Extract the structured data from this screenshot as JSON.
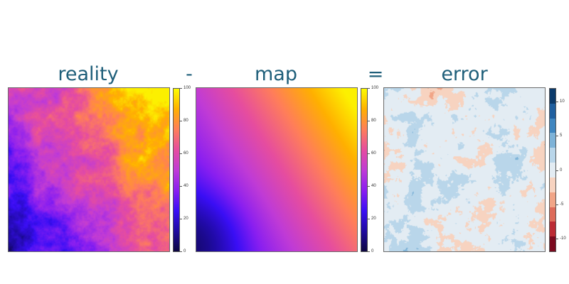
{
  "equation": {
    "reality_title": "reality",
    "minus_sign": "-",
    "map_title": "map",
    "equals_sign": "=",
    "error_title": "error",
    "title_color": "#1f5f7a"
  },
  "panels": {
    "reality": {
      "colormap": "plasma",
      "description_hint": "noisy random field, low (blue/purple) bottom-left, high (yellow) top and right"
    },
    "map": {
      "colormap": "plasma",
      "description_hint": "smooth field, low (blue) left, high (yellow) top-right"
    },
    "error": {
      "colormap": "RdBu",
      "description_hint": "patchy red/blue noise around zero"
    }
  },
  "colorbars": {
    "reality": {
      "ticks": [
        "100",
        "80",
        "60",
        "40",
        "20",
        "0"
      ],
      "range": [
        0,
        100
      ],
      "colors": [
        "#fcfc00",
        "#ffb000",
        "#ff7e5a",
        "#e64d9f",
        "#c03bd6",
        "#8a1ff0",
        "#3a0ef5",
        "#1f0aa0",
        "#0c0640"
      ]
    },
    "map": {
      "ticks": [
        "100",
        "80",
        "60",
        "40",
        "20",
        "0"
      ],
      "range": [
        0,
        100
      ],
      "colors": [
        "#fcfc00",
        "#ffb000",
        "#ff7e5a",
        "#e64d9f",
        "#c03bd6",
        "#8a1ff0",
        "#3a0ef5",
        "#1f0aa0",
        "#0c0640"
      ]
    },
    "error": {
      "ticks": [
        "10",
        "5",
        "0",
        "-5",
        "-10"
      ],
      "range": [
        -12,
        12
      ],
      "bands": [
        "#0b3a6b",
        "#1f5f9f",
        "#3f86c0",
        "#7eb3d8",
        "#b9d6ea",
        "#e3ecf3",
        "#f7d3c0",
        "#f1a587",
        "#dd6b5a",
        "#bb2b34",
        "#7b0a1f"
      ]
    }
  }
}
